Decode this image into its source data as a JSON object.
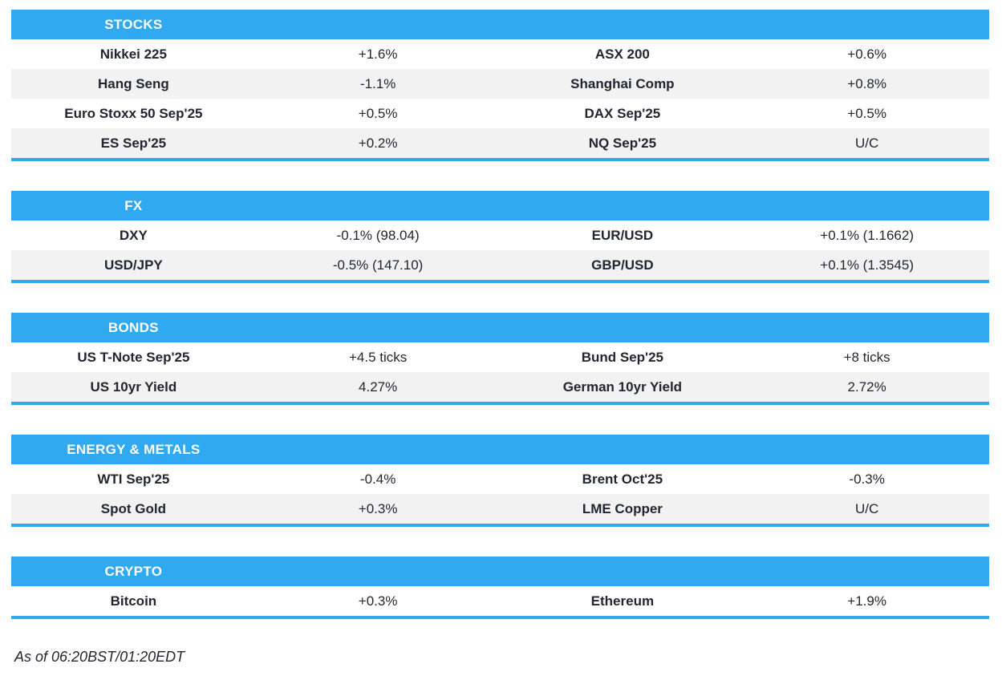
{
  "colors": {
    "accent_blue": "#31a9f0",
    "row_alt_gray": "#f2f2f2",
    "text_dark": "#212631",
    "header_text": "#ffffff"
  },
  "sections": [
    {
      "title": "STOCKS",
      "rows": [
        [
          "Nikkei 225",
          "+1.6%",
          "ASX 200",
          "+0.6%"
        ],
        [
          "Hang Seng",
          "-1.1%",
          "Shanghai Comp",
          "+0.8%"
        ],
        [
          "Euro Stoxx 50 Sep'25",
          "+0.5%",
          "DAX Sep'25",
          "+0.5%"
        ],
        [
          "ES Sep'25",
          "+0.2%",
          "NQ Sep'25",
          "U/C"
        ]
      ]
    },
    {
      "title": "FX",
      "rows": [
        [
          "DXY",
          "-0.1% (98.04)",
          "EUR/USD",
          "+0.1% (1.1662)"
        ],
        [
          "USD/JPY",
          "-0.5% (147.10)",
          "GBP/USD",
          "+0.1% (1.3545)"
        ]
      ]
    },
    {
      "title": "BONDS",
      "rows": [
        [
          "US T-Note Sep'25",
          "+4.5 ticks",
          "Bund Sep'25",
          "+8 ticks"
        ],
        [
          "US 10yr Yield",
          "4.27%",
          "German 10yr Yield",
          "2.72%"
        ]
      ]
    },
    {
      "title": "ENERGY & METALS",
      "rows": [
        [
          "WTI Sep'25",
          "-0.4%",
          "Brent Oct'25",
          "-0.3%"
        ],
        [
          "Spot Gold",
          "+0.3%",
          "LME Copper",
          "U/C"
        ]
      ]
    },
    {
      "title": "CRYPTO",
      "rows": [
        [
          "Bitcoin",
          "+0.3%",
          "Ethereum",
          "+1.9%"
        ]
      ]
    }
  ],
  "footer": {
    "as_of": "As of 06:20BST/01:20EDT"
  }
}
